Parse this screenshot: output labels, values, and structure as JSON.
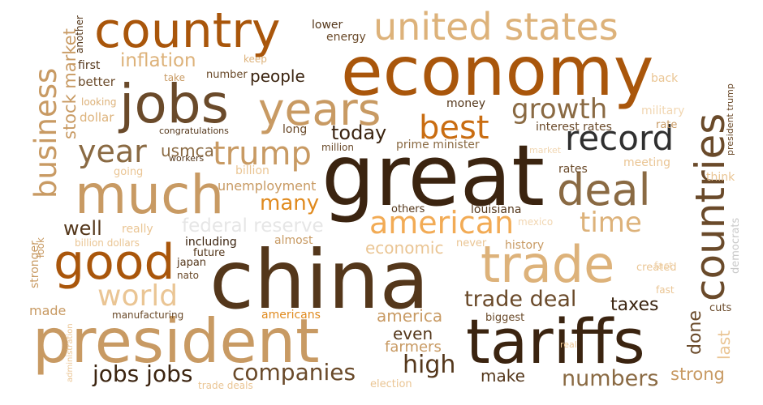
{
  "words": {
    "china": "china",
    "great": "great",
    "economy": "economy",
    "president": "president",
    "tariffs": "tariffs",
    "country": "country",
    "jobs": "jobs",
    "much": "much",
    "trade": "trade",
    "good": "good",
    "countries": "countries",
    "years": "years",
    "united_states": "united states",
    "deal": "deal",
    "record": "record",
    "american": "american",
    "best": "best",
    "trump": "trump",
    "growth": "growth",
    "year": "year",
    "business": "business",
    "time": "time",
    "world": "world",
    "inflation": "inflation",
    "jobs_jobs": "jobs jobs",
    "companies": "companies",
    "trade_deal": "trade deal",
    "high": "high",
    "numbers": "numbers",
    "stock_market": "stock market",
    "many": "many",
    "federal_reserve": "federal reserve",
    "today": "today",
    "well": "well",
    "people": "people",
    "usmca": "usmca",
    "economic": "economic",
    "america": "america",
    "taxes": "taxes",
    "strong": "strong",
    "make": "make",
    "even": "even",
    "farmers": "farmers",
    "done": "done",
    "last": "last",
    "others": "others",
    "louisiana": "louisiana",
    "unemployment": "unemployment",
    "money": "money",
    "interest_rates": "interest rates",
    "prime_minister": "prime minister",
    "rates": "rates",
    "meeting": "meeting",
    "billion": "billion",
    "million": "million",
    "long": "long",
    "congratulations": "congratulations",
    "workers": "workers",
    "going": "going",
    "dollar": "dollar",
    "looking": "looking",
    "better": "better",
    "first": "first",
    "take": "take",
    "number": "number",
    "keep": "keep",
    "lower": "lower",
    "energy": "energy",
    "another": "another",
    "back": "back",
    "military": "military",
    "rate": "rate",
    "market": "market",
    "think": "think",
    "president_trump": "president trump",
    "really": "really",
    "including": "including",
    "almost": "almost",
    "future": "future",
    "japan": "japan",
    "nato": "nato",
    "billion_dollars": "billion dollars",
    "look": "look",
    "stronger": "stronger",
    "made": "made",
    "administration": "administration",
    "manufacturing": "manufacturing",
    "americans": "americans",
    "biggest": "biggest",
    "never": "never",
    "history": "history",
    "created": "created",
    "fact": "fact",
    "fast": "fast",
    "cuts": "cuts",
    "democrats": "democrats",
    "mexico": "mexico",
    "real": "real",
    "election": "election",
    "trade_deals": "trade deals"
  }
}
